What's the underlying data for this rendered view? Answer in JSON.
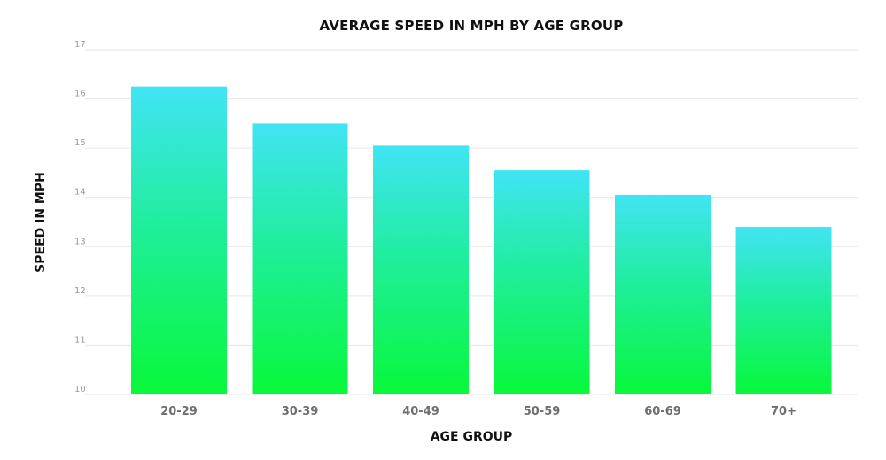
{
  "chart_data": {
    "type": "bar",
    "title": "AVERAGE SPEED IN MPH BY AGE GROUP",
    "xlabel": "AGE GROUP",
    "ylabel": "SPEED IN MPH",
    "categories": [
      "20-29",
      "30-39",
      "40-49",
      "50-59",
      "60-69",
      "70+"
    ],
    "values": [
      16.25,
      15.5,
      15.05,
      14.55,
      14.05,
      13.4
    ],
    "ylim": [
      10,
      17
    ],
    "yticks": [
      "10",
      "11",
      "12",
      "13",
      "14",
      "15",
      "16",
      "17"
    ],
    "grid": true,
    "colors": {
      "bar_top": "#41e4f5",
      "bar_bottom": "#08f83a"
    }
  }
}
